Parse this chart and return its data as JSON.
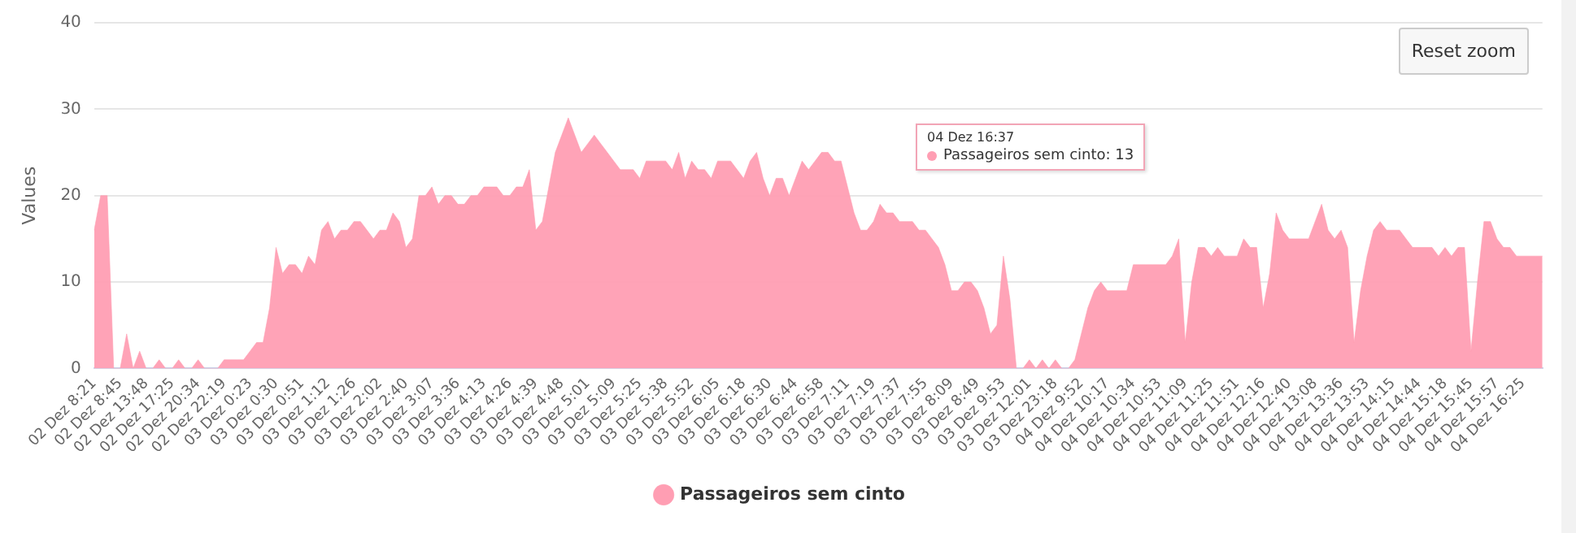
{
  "chart_data": {
    "type": "area",
    "ylabel": "Values",
    "categories": [
      "02 Dez 8:21",
      null,
      null,
      null,
      "02 Dez 8:45",
      null,
      null,
      null,
      "02 Dez 13:48",
      null,
      null,
      null,
      "02 Dez 17:25",
      null,
      null,
      null,
      "02 Dez 20:34",
      null,
      null,
      null,
      "02 Dez 22:19",
      null,
      null,
      null,
      "03 Dez 0:23",
      null,
      null,
      null,
      "03 Dez 0:30",
      null,
      null,
      null,
      "03 Dez 0:51",
      null,
      null,
      null,
      "03 Dez 1:12",
      null,
      null,
      null,
      "03 Dez 1:26",
      null,
      null,
      null,
      "03 Dez 2:02",
      null,
      null,
      null,
      "03 Dez 2:40",
      null,
      null,
      null,
      "03 Dez 3:07",
      null,
      null,
      null,
      "03 Dez 3:36",
      null,
      null,
      null,
      "03 Dez 4:13",
      null,
      null,
      null,
      "03 Dez 4:26",
      null,
      null,
      null,
      "03 Dez 4:39",
      null,
      null,
      null,
      "03 Dez 4:48",
      null,
      null,
      null,
      "03 Dez 5:01",
      null,
      null,
      null,
      "03 Dez 5:09",
      null,
      null,
      null,
      "03 Dez 5:25",
      null,
      null,
      null,
      "03 Dez 5:38",
      null,
      null,
      null,
      "03 Dez 5:52",
      null,
      null,
      null,
      "03 Dez 6:05",
      null,
      null,
      null,
      "03 Dez 6:18",
      null,
      null,
      null,
      "03 Dez 6:30",
      null,
      null,
      null,
      "03 Dez 6:44",
      null,
      null,
      null,
      "03 Dez 6:58",
      null,
      null,
      null,
      "03 Dez 7:11",
      null,
      null,
      null,
      "03 Dez 7:19",
      null,
      null,
      null,
      "03 Dez 7:37",
      null,
      null,
      null,
      "03 Dez 7:55",
      null,
      null,
      null,
      "03 Dez 8:09",
      null,
      null,
      null,
      "03 Dez 8:49",
      null,
      null,
      null,
      "03 Dez 9:53",
      null,
      null,
      null,
      "03 Dez 12:01",
      null,
      null,
      null,
      "03 Dez 23:18",
      null,
      null,
      null,
      "04 Dez 9:52",
      null,
      null,
      null,
      "04 Dez 10:17",
      null,
      null,
      null,
      "04 Dez 10:34",
      null,
      null,
      null,
      "04 Dez 10:53",
      null,
      null,
      null,
      "04 Dez 11:09",
      null,
      null,
      null,
      "04 Dez 11:25",
      null,
      null,
      null,
      "04 Dez 11:51",
      null,
      null,
      null,
      "04 Dez 12:16",
      null,
      null,
      null,
      "04 Dez 12:40",
      null,
      null,
      null,
      "04 Dez 13:08",
      null,
      null,
      null,
      "04 Dez 13:36",
      null,
      null,
      null,
      "04 Dez 13:53",
      null,
      null,
      null,
      "04 Dez 14:15",
      null,
      null,
      null,
      "04 Dez 14:44",
      null,
      null,
      null,
      "04 Dez 15:18",
      null,
      null,
      null,
      "04 Dez 15:45",
      null,
      null,
      null,
      "04 Dez 15:57",
      null,
      null,
      null,
      "04 Dez 16:25",
      null,
      null,
      null
    ],
    "series": [
      {
        "name": "Passageiros sem cinto",
        "color": "#ff9eb3",
        "values": [
          16,
          20,
          20,
          0,
          0,
          4,
          0,
          2,
          0,
          0,
          1,
          0,
          0,
          1,
          0,
          0,
          1,
          0,
          0,
          0,
          1,
          1,
          1,
          1,
          2,
          3,
          3,
          7,
          14,
          11,
          12,
          12,
          11,
          13,
          12,
          16,
          17,
          15,
          16,
          16,
          17,
          17,
          16,
          15,
          16,
          16,
          18,
          17,
          14,
          15,
          20,
          20,
          21,
          19,
          20,
          20,
          19,
          19,
          20,
          20,
          21,
          21,
          21,
          20,
          20,
          21,
          21,
          23,
          16,
          17,
          21,
          25,
          27,
          29,
          27,
          25,
          26,
          27,
          26,
          25,
          24,
          23,
          23,
          23,
          22,
          24,
          24,
          24,
          24,
          23,
          25,
          22,
          24,
          23,
          23,
          22,
          24,
          24,
          24,
          23,
          22,
          24,
          25,
          22,
          20,
          22,
          22,
          20,
          22,
          24,
          23,
          24,
          25,
          25,
          24,
          24,
          21,
          18,
          16,
          16,
          17,
          19,
          18,
          18,
          17,
          17,
          17,
          16,
          16,
          15,
          14,
          12,
          9,
          9,
          10,
          10,
          9,
          7,
          4,
          5,
          13,
          8,
          0,
          0,
          1,
          0,
          1,
          0,
          1,
          0,
          0,
          1,
          4,
          7,
          9,
          10,
          9,
          9,
          9,
          9,
          12,
          12,
          12,
          12,
          12,
          12,
          13,
          15,
          3,
          10,
          14,
          14,
          13,
          14,
          13,
          13,
          13,
          15,
          14,
          14,
          7,
          11,
          18,
          16,
          15,
          15,
          15,
          15,
          17,
          19,
          16,
          15,
          16,
          14,
          3,
          9,
          13,
          16,
          17,
          16,
          16,
          16,
          15,
          14,
          14,
          14,
          14,
          13,
          14,
          13,
          14,
          14,
          2,
          10,
          17,
          17,
          15,
          14,
          14,
          13,
          13,
          13,
          13,
          13
        ]
      }
    ],
    "ylim": [
      0,
      40
    ],
    "yticks": [
      0,
      10,
      20,
      30,
      40
    ],
    "grid": "y",
    "legend": "bottom",
    "marker": "none",
    "annotations": [
      "Reset zoom",
      "04 Dez 16:37",
      "Passageiros sem cinto: 13"
    ]
  }
}
